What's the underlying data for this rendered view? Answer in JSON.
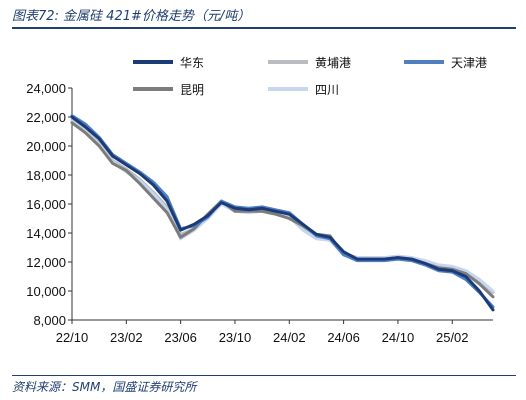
{
  "header": {
    "title": "图表72:  金属硅 421#价格走势（元/吨）"
  },
  "footer": {
    "source": "资料来源：SMM，国盛证券研究所"
  },
  "colors": {
    "华东": "#1a3b78",
    "黄埔港": "#b9bcc2",
    "天津港": "#4f7fc0",
    "昆明": "#7c7c7c",
    "四川": "#c6d6ef"
  },
  "chart_data": {
    "type": "line",
    "x_ticks": [
      "22/10",
      "23/02",
      "23/06",
      "23/10",
      "24/02",
      "24/06",
      "24/10",
      "25/02"
    ],
    "xlim": [
      "2022-10",
      "2025-05"
    ],
    "ylim": [
      8000,
      24000
    ],
    "y_ticks": [
      "8,000",
      "10,000",
      "12,000",
      "14,000",
      "16,000",
      "18,000",
      "20,000",
      "22,000",
      "24,000"
    ],
    "grid": false,
    "legend_position": "top",
    "series": [
      {
        "name": "华东",
        "points": [
          [
            "2022-10",
            22000
          ],
          [
            "2022-11",
            21300
          ],
          [
            "2022-12",
            20500
          ],
          [
            "2023-01",
            19300
          ],
          [
            "2023-02",
            18700
          ],
          [
            "2023-03",
            18100
          ],
          [
            "2023-04",
            17300
          ],
          [
            "2023-05",
            16200
          ],
          [
            "2023-06",
            14200
          ],
          [
            "2023-07",
            14600
          ],
          [
            "2023-08",
            15200
          ],
          [
            "2023-09",
            16100
          ],
          [
            "2023-10",
            15700
          ],
          [
            "2023-11",
            15600
          ],
          [
            "2023-12",
            15700
          ],
          [
            "2024-01",
            15500
          ],
          [
            "2024-02",
            15300
          ],
          [
            "2024-03",
            14600
          ],
          [
            "2024-04",
            13900
          ],
          [
            "2024-05",
            13700
          ],
          [
            "2024-06",
            12700
          ],
          [
            "2024-07",
            12200
          ],
          [
            "2024-08",
            12200
          ],
          [
            "2024-09",
            12200
          ],
          [
            "2024-10",
            12300
          ],
          [
            "2024-11",
            12200
          ],
          [
            "2024-12",
            11900
          ],
          [
            "2025-01",
            11500
          ],
          [
            "2025-02",
            11400
          ],
          [
            "2025-03",
            11000
          ],
          [
            "2025-04",
            10000
          ],
          [
            "2025-05",
            8700
          ]
        ]
      },
      {
        "name": "黄埔港",
        "points": [
          [
            "2022-10",
            21800
          ],
          [
            "2022-11",
            21100
          ],
          [
            "2022-12",
            20200
          ],
          [
            "2023-01",
            19000
          ],
          [
            "2023-02",
            18400
          ],
          [
            "2023-03",
            17700
          ],
          [
            "2023-04",
            16800
          ],
          [
            "2023-05",
            15800
          ],
          [
            "2023-06",
            13900
          ],
          [
            "2023-07",
            14300
          ],
          [
            "2023-08",
            15100
          ],
          [
            "2023-09",
            16200
          ],
          [
            "2023-10",
            15600
          ],
          [
            "2023-11",
            15500
          ],
          [
            "2023-12",
            15600
          ],
          [
            "2024-01",
            15400
          ],
          [
            "2024-02",
            15100
          ],
          [
            "2024-03",
            14400
          ],
          [
            "2024-04",
            13700
          ],
          [
            "2024-05",
            13600
          ],
          [
            "2024-06",
            12600
          ],
          [
            "2024-07",
            12300
          ],
          [
            "2024-08",
            12300
          ],
          [
            "2024-09",
            12300
          ],
          [
            "2024-10",
            12400
          ],
          [
            "2024-11",
            12300
          ],
          [
            "2024-12",
            12000
          ],
          [
            "2025-01",
            11700
          ],
          [
            "2025-02",
            11600
          ],
          [
            "2025-03",
            11300
          ],
          [
            "2025-04",
            10700
          ],
          [
            "2025-05",
            9900
          ]
        ]
      },
      {
        "name": "天津港",
        "points": [
          [
            "2022-10",
            22100
          ],
          [
            "2022-11",
            21500
          ],
          [
            "2022-12",
            20600
          ],
          [
            "2023-01",
            19400
          ],
          [
            "2023-02",
            18800
          ],
          [
            "2023-03",
            18200
          ],
          [
            "2023-04",
            17500
          ],
          [
            "2023-05",
            16500
          ],
          [
            "2023-06",
            14300
          ],
          [
            "2023-07",
            14500
          ],
          [
            "2023-08",
            15100
          ],
          [
            "2023-09",
            16200
          ],
          [
            "2023-10",
            15800
          ],
          [
            "2023-11",
            15700
          ],
          [
            "2023-12",
            15800
          ],
          [
            "2024-01",
            15600
          ],
          [
            "2024-02",
            15400
          ],
          [
            "2024-03",
            14600
          ],
          [
            "2024-04",
            13800
          ],
          [
            "2024-05",
            13600
          ],
          [
            "2024-06",
            12500
          ],
          [
            "2024-07",
            12100
          ],
          [
            "2024-08",
            12100
          ],
          [
            "2024-09",
            12100
          ],
          [
            "2024-10",
            12200
          ],
          [
            "2024-11",
            12100
          ],
          [
            "2024-12",
            11800
          ],
          [
            "2025-01",
            11400
          ],
          [
            "2025-02",
            11300
          ],
          [
            "2025-03",
            10800
          ],
          [
            "2025-04",
            9900
          ],
          [
            "2025-05",
            8900
          ]
        ]
      },
      {
        "name": "昆明",
        "points": [
          [
            "2022-10",
            21600
          ],
          [
            "2022-11",
            20900
          ],
          [
            "2022-12",
            20000
          ],
          [
            "2023-01",
            18800
          ],
          [
            "2023-02",
            18300
          ],
          [
            "2023-03",
            17400
          ],
          [
            "2023-04",
            16400
          ],
          [
            "2023-05",
            15400
          ],
          [
            "2023-06",
            13700
          ],
          [
            "2023-07",
            14300
          ],
          [
            "2023-08",
            15300
          ],
          [
            "2023-09",
            16200
          ],
          [
            "2023-10",
            15500
          ],
          [
            "2023-11",
            15500
          ],
          [
            "2023-12",
            15500
          ],
          [
            "2024-01",
            15300
          ],
          [
            "2024-02",
            15000
          ],
          [
            "2024-03",
            14500
          ],
          [
            "2024-04",
            13900
          ],
          [
            "2024-05",
            13800
          ],
          [
            "2024-06",
            12500
          ],
          [
            "2024-07",
            12200
          ],
          [
            "2024-08",
            12200
          ],
          [
            "2024-09",
            12200
          ],
          [
            "2024-10",
            12300
          ],
          [
            "2024-11",
            12200
          ],
          [
            "2024-12",
            11900
          ],
          [
            "2025-01",
            11600
          ],
          [
            "2025-02",
            11500
          ],
          [
            "2025-03",
            11200
          ],
          [
            "2025-04",
            10500
          ],
          [
            "2025-05",
            9600
          ]
        ]
      },
      {
        "name": "四川",
        "points": [
          [
            "2022-10",
            21700
          ],
          [
            "2022-11",
            21000
          ],
          [
            "2022-12",
            20100
          ],
          [
            "2023-01",
            18900
          ],
          [
            "2023-02",
            18200
          ],
          [
            "2023-03",
            17600
          ],
          [
            "2023-04",
            16700
          ],
          [
            "2023-05",
            15600
          ],
          [
            "2023-06",
            13600
          ],
          [
            "2023-07",
            14200
          ],
          [
            "2023-08",
            15000
          ],
          [
            "2023-09",
            16000
          ],
          [
            "2023-10",
            15500
          ],
          [
            "2023-11",
            15400
          ],
          [
            "2023-12",
            15500
          ],
          [
            "2024-01",
            15300
          ],
          [
            "2024-02",
            15100
          ],
          [
            "2024-03",
            14200
          ],
          [
            "2024-04",
            13600
          ],
          [
            "2024-05",
            13500
          ],
          [
            "2024-06",
            12500
          ],
          [
            "2024-07",
            12300
          ],
          [
            "2024-08",
            12300
          ],
          [
            "2024-09",
            12300
          ],
          [
            "2024-10",
            12400
          ],
          [
            "2024-11",
            12300
          ],
          [
            "2024-12",
            12100
          ],
          [
            "2025-01",
            11800
          ],
          [
            "2025-02",
            11700
          ],
          [
            "2025-03",
            11400
          ],
          [
            "2025-04",
            10800
          ],
          [
            "2025-05",
            10000
          ]
        ]
      }
    ]
  }
}
